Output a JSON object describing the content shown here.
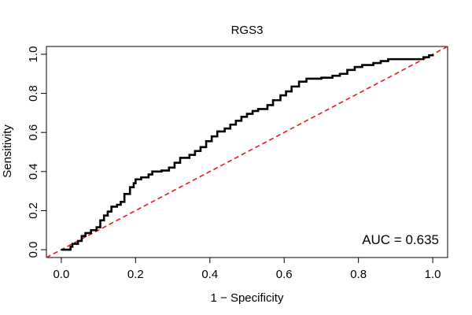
{
  "chart_data": {
    "type": "line",
    "title": "RGS3",
    "xlabel": "1 − Specificity",
    "ylabel": "Sensitivity",
    "xlim": [
      -0.04,
      1.04
    ],
    "ylim": [
      -0.04,
      1.04
    ],
    "x_ticks": [
      0.0,
      0.2,
      0.4,
      0.6,
      0.8,
      1.0
    ],
    "x_tick_labels": [
      "0.0",
      "0.2",
      "0.4",
      "0.6",
      "0.8",
      "1.0"
    ],
    "y_ticks": [
      0.0,
      0.2,
      0.4,
      0.6,
      0.8,
      1.0
    ],
    "y_tick_labels": [
      "0.0",
      "0.2",
      "0.4",
      "0.6",
      "0.8",
      "1.0"
    ],
    "grid": false,
    "annotation": "AUC = 0.635",
    "series": [
      {
        "color": "#000000",
        "style": "step",
        "points": [
          [
            0.0,
            0.0
          ],
          [
            0.02,
            0.0
          ],
          [
            0.025,
            0.015
          ],
          [
            0.03,
            0.03
          ],
          [
            0.045,
            0.045
          ],
          [
            0.055,
            0.07
          ],
          [
            0.065,
            0.085
          ],
          [
            0.08,
            0.1
          ],
          [
            0.095,
            0.115
          ],
          [
            0.105,
            0.15
          ],
          [
            0.115,
            0.175
          ],
          [
            0.125,
            0.195
          ],
          [
            0.135,
            0.22
          ],
          [
            0.15,
            0.23
          ],
          [
            0.16,
            0.245
          ],
          [
            0.17,
            0.285
          ],
          [
            0.185,
            0.32
          ],
          [
            0.195,
            0.34
          ],
          [
            0.2,
            0.36
          ],
          [
            0.215,
            0.37
          ],
          [
            0.235,
            0.385
          ],
          [
            0.245,
            0.4
          ],
          [
            0.27,
            0.405
          ],
          [
            0.29,
            0.42
          ],
          [
            0.305,
            0.445
          ],
          [
            0.32,
            0.47
          ],
          [
            0.345,
            0.485
          ],
          [
            0.36,
            0.505
          ],
          [
            0.375,
            0.525
          ],
          [
            0.39,
            0.555
          ],
          [
            0.405,
            0.58
          ],
          [
            0.42,
            0.605
          ],
          [
            0.44,
            0.62
          ],
          [
            0.455,
            0.64
          ],
          [
            0.47,
            0.66
          ],
          [
            0.485,
            0.68
          ],
          [
            0.5,
            0.695
          ],
          [
            0.515,
            0.71
          ],
          [
            0.53,
            0.72
          ],
          [
            0.555,
            0.74
          ],
          [
            0.57,
            0.765
          ],
          [
            0.59,
            0.79
          ],
          [
            0.605,
            0.81
          ],
          [
            0.62,
            0.835
          ],
          [
            0.64,
            0.86
          ],
          [
            0.66,
            0.875
          ],
          [
            0.7,
            0.88
          ],
          [
            0.73,
            0.89
          ],
          [
            0.75,
            0.9
          ],
          [
            0.77,
            0.92
          ],
          [
            0.79,
            0.935
          ],
          [
            0.81,
            0.945
          ],
          [
            0.84,
            0.955
          ],
          [
            0.86,
            0.965
          ],
          [
            0.88,
            0.975
          ],
          [
            0.95,
            0.975
          ],
          [
            0.975,
            0.985
          ],
          [
            0.99,
            0.995
          ],
          [
            1.0,
            1.0
          ]
        ]
      }
    ],
    "reference_line": {
      "points": [
        [
          -0.04,
          -0.04
        ],
        [
          1.04,
          1.04
        ]
      ],
      "color": "#e31a1c",
      "style": "dashed"
    }
  }
}
